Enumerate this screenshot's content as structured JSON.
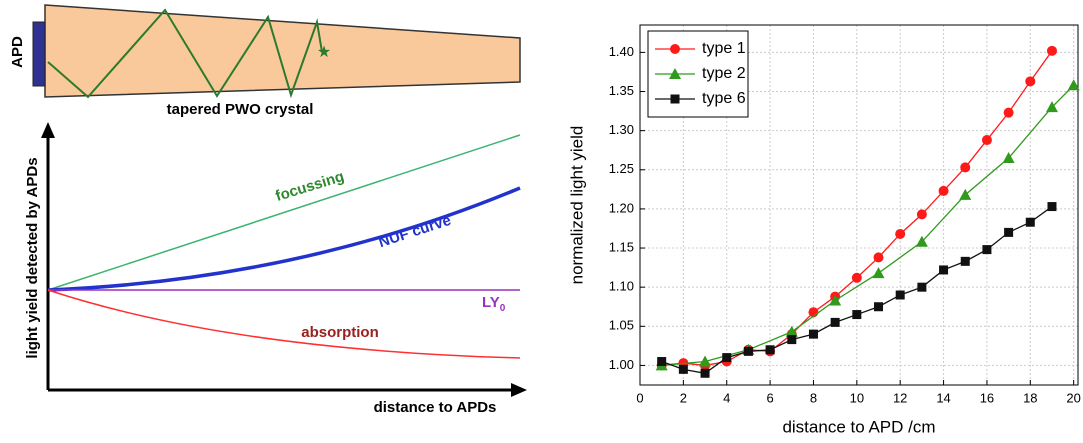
{
  "diagram": {
    "apd_label": "APD",
    "crystal_label": "tapered PWO crystal",
    "y_axis_label": "light yield detected by APDs",
    "x_axis_label": "distance to APDs",
    "curves": {
      "focussing": "focussing",
      "nuf": "NUF curve",
      "ly": "LY",
      "ly_subscript": "0",
      "absorption": "absorption"
    }
  },
  "chart_data": {
    "type": "line",
    "x_label": "distance to APD /cm",
    "y_label": "normalized light yield",
    "xlim": [
      0,
      20.2
    ],
    "xticks": [
      0,
      2,
      4,
      6,
      8,
      10,
      12,
      14,
      16,
      18,
      20
    ],
    "ylim": [
      0.975,
      1.435
    ],
    "yticks": [
      {
        "value": 1,
        "label": "1.00"
      },
      1.05,
      {
        "value": 1.1,
        "label": "1.10"
      },
      1.15,
      {
        "value": 1.2,
        "label": "1.20"
      },
      1.25,
      {
        "value": 1.3,
        "label": "1.30"
      },
      1.35,
      {
        "value": 1.4,
        "label": "1.40"
      }
    ],
    "grid": true,
    "legend": "upper-left",
    "series": [
      {
        "name": "type 1",
        "color": "#ff1a1a",
        "marker": "circle",
        "x": [
          1,
          2,
          3,
          4,
          5,
          6,
          7,
          8,
          9,
          10,
          11,
          12,
          13,
          14,
          15,
          16,
          17,
          18,
          19
        ],
        "values": [
          1.0,
          1.003,
          1.0,
          1.005,
          1.02,
          1.018,
          1.04,
          1.068,
          1.088,
          1.112,
          1.138,
          1.168,
          1.193,
          1.223,
          1.253,
          1.288,
          1.323,
          1.363,
          1.402
        ]
      },
      {
        "name": "type 2",
        "color": "#2f9a1c",
        "marker": "triangle",
        "x": [
          1,
          3,
          5,
          7,
          9,
          11,
          13,
          15,
          17,
          19,
          20
        ],
        "values": [
          1.0,
          1.005,
          1.02,
          1.043,
          1.083,
          1.118,
          1.158,
          1.218,
          1.265,
          1.33,
          1.358
        ]
      },
      {
        "name": "type 6",
        "color": "#111111",
        "marker": "square",
        "x": [
          1,
          2,
          3,
          4,
          5,
          6,
          7,
          8,
          9,
          10,
          11,
          12,
          13,
          14,
          15,
          16,
          17,
          18,
          19
        ],
        "values": [
          1.005,
          0.995,
          0.99,
          1.01,
          1.018,
          1.02,
          1.033,
          1.04,
          1.055,
          1.065,
          1.075,
          1.09,
          1.1,
          1.122,
          1.133,
          1.148,
          1.17,
          1.183,
          1.203
        ]
      }
    ]
  }
}
